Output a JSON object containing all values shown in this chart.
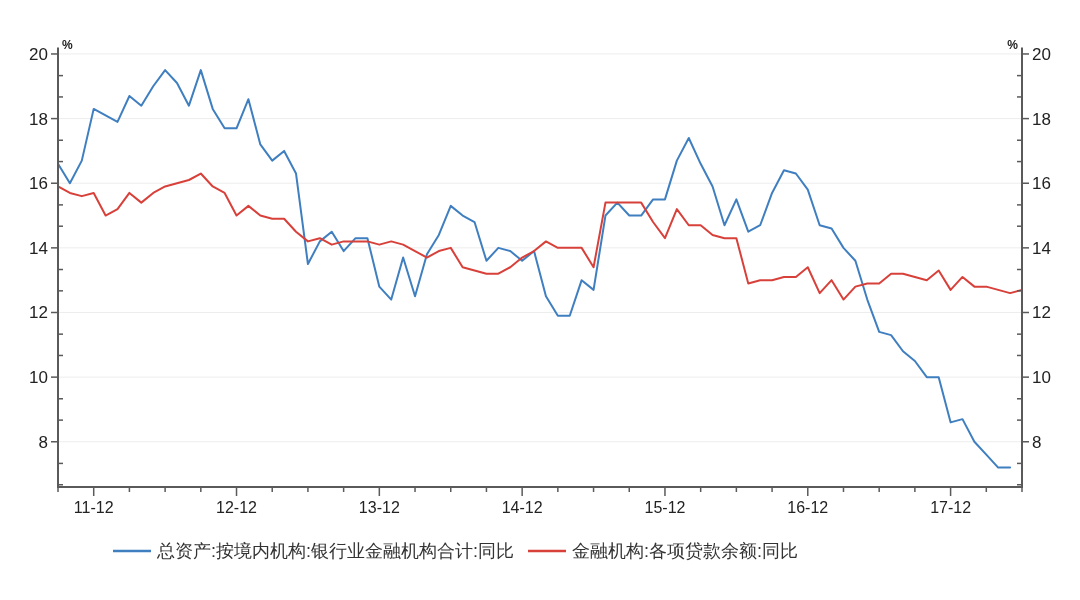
{
  "chart_data": {
    "type": "line",
    "ylabel": "%",
    "y2label": "%",
    "grid": "y",
    "legend": "bottom",
    "xlim": [
      "2011-09",
      "2018-06"
    ],
    "xticks": [
      {
        "value": "2011-09",
        "label": null
      },
      {
        "value": "2011-12",
        "label": "11-12"
      },
      {
        "value": "2012-03",
        "label": null
      },
      {
        "value": "2012-06",
        "label": null
      },
      {
        "value": "2012-09",
        "label": null
      },
      {
        "value": "2012-12",
        "label": "12-12"
      },
      {
        "value": "2013-03",
        "label": null
      },
      {
        "value": "2013-06",
        "label": null
      },
      {
        "value": "2013-09",
        "label": null
      },
      {
        "value": "2013-12",
        "label": "13-12"
      },
      {
        "value": "2014-03",
        "label": null
      },
      {
        "value": "2014-06",
        "label": null
      },
      {
        "value": "2014-09",
        "label": null
      },
      {
        "value": "2014-12",
        "label": "14-12"
      },
      {
        "value": "2015-03",
        "label": null
      },
      {
        "value": "2015-06",
        "label": null
      },
      {
        "value": "2015-09",
        "label": null
      },
      {
        "value": "2015-12",
        "label": "15-12"
      },
      {
        "value": "2016-03",
        "label": null
      },
      {
        "value": "2016-06",
        "label": null
      },
      {
        "value": "2016-09",
        "label": null
      },
      {
        "value": "2016-12",
        "label": "16-12"
      },
      {
        "value": "2017-03",
        "label": null
      },
      {
        "value": "2017-06",
        "label": null
      },
      {
        "value": "2017-09",
        "label": null
      },
      {
        "value": "2017-12",
        "label": "17-12"
      },
      {
        "value": "2018-03",
        "label": null
      },
      {
        "value": "2018-06",
        "label": null
      }
    ],
    "ylim": [
      6.6,
      20.2
    ],
    "yticks": [
      {
        "value": 6.67,
        "label": null
      },
      {
        "value": 7.33,
        "label": null
      },
      8,
      {
        "value": 8.67,
        "label": null
      },
      {
        "value": 9.33,
        "label": null
      },
      10,
      {
        "value": 10.67,
        "label": null
      },
      {
        "value": 11.33,
        "label": null
      },
      12,
      {
        "value": 12.67,
        "label": null
      },
      {
        "value": 13.33,
        "label": null
      },
      14,
      {
        "value": 14.67,
        "label": null
      },
      {
        "value": 15.33,
        "label": null
      },
      16,
      {
        "value": 16.67,
        "label": null
      },
      {
        "value": 17.33,
        "label": null
      },
      18,
      {
        "value": 18.67,
        "label": null
      },
      {
        "value": 19.33,
        "label": null
      },
      20
    ],
    "y2lim": [
      6.6,
      20.2
    ],
    "y2ticks": [
      {
        "value": 6.67,
        "label": null
      },
      {
        "value": 7.33,
        "label": null
      },
      8,
      {
        "value": 8.67,
        "label": null
      },
      {
        "value": 9.33,
        "label": null
      },
      10,
      {
        "value": 10.67,
        "label": null
      },
      {
        "value": 11.33,
        "label": null
      },
      12,
      {
        "value": 12.67,
        "label": null
      },
      {
        "value": 13.33,
        "label": null
      },
      14,
      {
        "value": 14.67,
        "label": null
      },
      {
        "value": 15.33,
        "label": null
      },
      16,
      {
        "value": 16.67,
        "label": null
      },
      {
        "value": 17.33,
        "label": null
      },
      18,
      {
        "value": 18.67,
        "label": null
      },
      {
        "value": 19.33,
        "label": null
      },
      20
    ],
    "x": [
      "2011-09",
      "2011-10",
      "2011-11",
      "2011-12",
      "2012-01",
      "2012-02",
      "2012-03",
      "2012-04",
      "2012-05",
      "2012-06",
      "2012-07",
      "2012-08",
      "2012-09",
      "2012-10",
      "2012-11",
      "2012-12",
      "2013-01",
      "2013-02",
      "2013-03",
      "2013-04",
      "2013-05",
      "2013-06",
      "2013-07",
      "2013-08",
      "2013-09",
      "2013-10",
      "2013-11",
      "2013-12",
      "2014-01",
      "2014-02",
      "2014-03",
      "2014-04",
      "2014-05",
      "2014-06",
      "2014-07",
      "2014-08",
      "2014-09",
      "2014-10",
      "2014-11",
      "2014-12",
      "2015-01",
      "2015-02",
      "2015-03",
      "2015-04",
      "2015-05",
      "2015-06",
      "2015-07",
      "2015-08",
      "2015-09",
      "2015-10",
      "2015-11",
      "2015-12",
      "2016-01",
      "2016-02",
      "2016-03",
      "2016-04",
      "2016-05",
      "2016-06",
      "2016-07",
      "2016-08",
      "2016-09",
      "2016-10",
      "2016-11",
      "2016-12",
      "2017-01",
      "2017-02",
      "2017-03",
      "2017-04",
      "2017-05",
      "2017-06",
      "2017-07",
      "2017-08",
      "2017-09",
      "2017-10",
      "2017-11",
      "2017-12",
      "2018-01",
      "2018-02",
      "2018-03",
      "2018-04",
      "2018-05",
      "2018-06"
    ],
    "series": [
      {
        "name": "总资产:按境内机构:银行业金融机构合计:同比",
        "color": "#3f7fc0",
        "values": [
          16.6,
          16.0,
          16.7,
          18.3,
          18.1,
          17.9,
          18.7,
          18.4,
          19.0,
          19.5,
          19.1,
          18.4,
          19.5,
          18.3,
          17.7,
          17.7,
          18.6,
          17.2,
          16.7,
          17.0,
          16.3,
          13.5,
          14.2,
          14.5,
          13.9,
          14.3,
          14.3,
          12.8,
          12.4,
          13.7,
          12.5,
          13.8,
          14.4,
          15.3,
          15.0,
          14.8,
          13.6,
          14.0,
          13.9,
          13.6,
          13.9,
          12.5,
          11.9,
          11.9,
          13.0,
          12.7,
          15.0,
          15.4,
          15.0,
          15.0,
          15.5,
          15.5,
          16.7,
          17.4,
          16.6,
          15.9,
          14.7,
          15.5,
          14.5,
          14.7,
          15.7,
          16.4,
          16.3,
          15.8,
          14.7,
          14.6,
          14.0,
          13.6,
          12.4,
          11.4,
          11.3,
          10.8,
          10.5,
          10.0,
          10.0,
          8.6,
          8.7,
          8.0,
          7.6,
          7.2,
          7.2,
          null
        ]
      },
      {
        "name": "金融机构:各项贷款余额:同比",
        "color": "#d8403a",
        "values": [
          15.9,
          15.7,
          15.6,
          15.7,
          15.0,
          15.2,
          15.7,
          15.4,
          15.7,
          15.9,
          16.0,
          16.1,
          16.3,
          15.9,
          15.7,
          15.0,
          15.3,
          15.0,
          14.9,
          14.9,
          14.5,
          14.2,
          14.3,
          14.1,
          14.2,
          14.2,
          14.2,
          14.1,
          14.2,
          14.1,
          13.9,
          13.7,
          13.9,
          14.0,
          13.4,
          13.3,
          13.2,
          13.2,
          13.4,
          13.7,
          13.9,
          14.2,
          14.0,
          14.0,
          14.0,
          13.4,
          15.4,
          15.4,
          15.4,
          15.4,
          14.8,
          14.3,
          15.2,
          14.7,
          14.7,
          14.4,
          14.3,
          14.3,
          12.9,
          13.0,
          13.0,
          13.1,
          13.1,
          13.4,
          12.6,
          13.0,
          12.4,
          12.8,
          12.9,
          12.9,
          13.2,
          13.2,
          13.1,
          13.0,
          13.3,
          12.7,
          13.1,
          12.8,
          12.8,
          12.7,
          12.6,
          12.7
        ]
      }
    ]
  }
}
